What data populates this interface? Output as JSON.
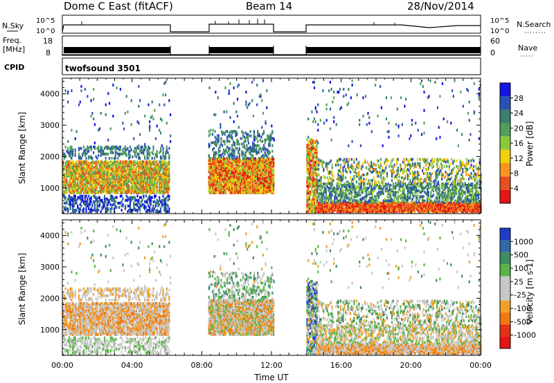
{
  "header": {
    "title": "Dome C East (fitACF)",
    "beam": "Beam 14",
    "date": "28/Nov/2014"
  },
  "panels": {
    "nsky": {
      "label": "N.Sky",
      "ticks_left": [
        "10^5",
        "10^0"
      ]
    },
    "nsearch": {
      "label": "N.Search",
      "ticks_right": [
        "10^5",
        "10^0"
      ]
    },
    "freq": {
      "label_line1": "Freq.",
      "label_line2": "[MHz]",
      "ticks_left": [
        "18",
        "8"
      ]
    },
    "nave": {
      "label": "Nave",
      "ticks_right": [
        "60",
        "0"
      ]
    },
    "cpid": {
      "label": "CPID",
      "mode": "twofsound 3501"
    }
  },
  "colors": {
    "power": [
      "#1414e6",
      "#2a52b4",
      "#3c7d6e",
      "#4fa05a",
      "#8cc83c",
      "#f0d20a",
      "#f5961e",
      "#e6501e",
      "#e61414"
    ],
    "velocity": [
      "#1e3cc8",
      "#2f6aa8",
      "#3d8c64",
      "#5ab446",
      "#c8c8c8",
      "#c8c8c8",
      "#f0a028",
      "#f07814",
      "#e63214",
      "#e61414"
    ]
  },
  "chart_data": [
    {
      "type": "heatmap",
      "ylabel": "Slant Range [km]",
      "ylim": [
        180,
        4500
      ],
      "yticks": [
        "1000",
        "2000",
        "3000",
        "4000"
      ],
      "xlim": [
        "00:00",
        "24:00"
      ],
      "colorbar": {
        "label": "Power [dB]",
        "range": [
          0,
          32
        ],
        "ticks": [
          "28",
          "24",
          "20",
          "16",
          "12",
          "8",
          "4"
        ]
      },
      "data_gaps_ut": [
        [
          "06:10",
          "08:20"
        ],
        [
          "12:10",
          "14:00"
        ]
      ]
    },
    {
      "type": "heatmap",
      "ylabel": "Slant Range [km]",
      "ylim": [
        180,
        4500
      ],
      "yticks": [
        "1000",
        "2000",
        "3000",
        "4000"
      ],
      "xlim": [
        "00:00",
        "24:00"
      ],
      "xticks": [
        "00:00",
        "04:00",
        "08:00",
        "12:00",
        "16:00",
        "20:00",
        "00:00"
      ],
      "xlabel": "Time UT",
      "colorbar": {
        "label": "Velocity [m s-1]",
        "ticks": [
          "1000",
          "500",
          "100",
          "25",
          "-25",
          "-100",
          "-500",
          "-1000"
        ]
      },
      "data_gaps_ut": [
        [
          "06:10",
          "08:20"
        ],
        [
          "12:10",
          "14:00"
        ]
      ]
    }
  ]
}
